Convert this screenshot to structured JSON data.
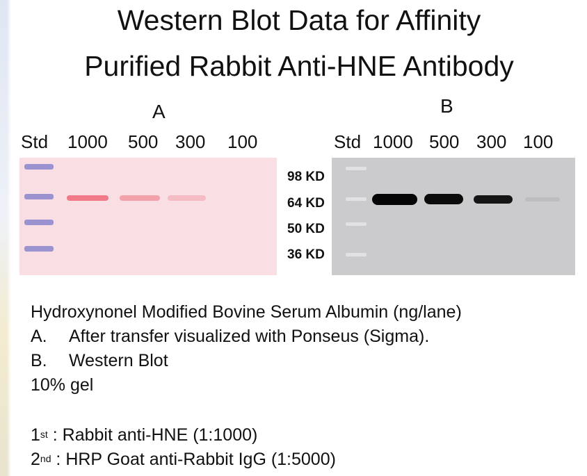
{
  "title": {
    "line1": "Western Blot Data for Affinity",
    "line2": "Purified Rabbit Anti-HNE Antibody"
  },
  "panels": {
    "a": {
      "letter": "A",
      "lanes": [
        "Std",
        "1000",
        "500",
        "300",
        "100"
      ]
    },
    "b": {
      "letter": "B",
      "lanes": [
        "Std",
        "1000",
        "500",
        "300",
        "100"
      ]
    }
  },
  "markers": [
    "98 KD",
    "64 KD",
    "50 KD",
    "36 KD"
  ],
  "caption": {
    "line1": "Hydroxynonel Modified Bovine Serum Albumin (ng/lane)",
    "item_a_num": "A.",
    "item_a_text": "After transfer visualized with Ponseus (Sigma).",
    "item_b_num": "B.",
    "item_b_text": "Western Blot",
    "gel": "10% gel",
    "primary_base": "1",
    "primary_sup": "st",
    "primary_text": " : Rabbit anti-HNE (1:1000)",
    "secondary_base": "2",
    "secondary_sup": "nd",
    "secondary_text": " : HRP Goat anti-Rabbit IgG (1:5000)"
  },
  "colors": {
    "ponceau_background": "#f9dfe3",
    "ponceau_band": "#ef6f7e",
    "ladder_a": "#9a93cf",
    "blot_background": "#cbcbcd",
    "blot_band": "#050505"
  }
}
